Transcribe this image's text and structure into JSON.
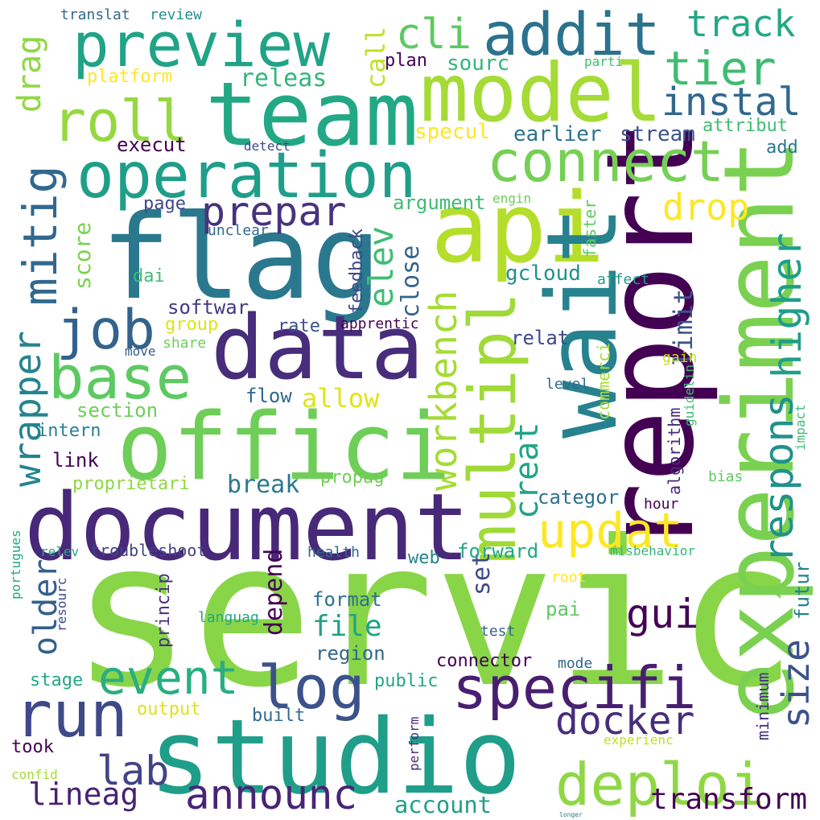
{
  "palette": {
    "dark_purple": "#440154",
    "indigo": "#482878",
    "violet_blue": "#3e4989",
    "steel_blue": "#31688e",
    "teal_blue": "#26828e",
    "teal": "#1f9e89",
    "green_teal": "#35b779",
    "green": "#6ece58",
    "lime": "#b5de2b",
    "yellow": "#fde725"
  },
  "words": [
    {
      "text": "servic",
      "color": "#89d548"
    },
    {
      "text": "studio",
      "color": "#1f9e89"
    },
    {
      "text": "document",
      "color": "#482878"
    },
    {
      "text": "flag",
      "color": "#2a788e"
    },
    {
      "text": "team",
      "color": "#22a884"
    },
    {
      "text": "data",
      "color": "#472d7b"
    },
    {
      "text": "model",
      "color": "#a5db36"
    },
    {
      "text": "experiment",
      "color": "#7ad151"
    },
    {
      "text": "report",
      "color": "#440154"
    },
    {
      "text": "offici",
      "color": "#6ece58"
    },
    {
      "text": "api",
      "color": "#b5de2b"
    },
    {
      "text": "operation",
      "color": "#1f9e89"
    },
    {
      "text": "wait",
      "color": "#26828e"
    },
    {
      "text": "preview",
      "color": "#20a386"
    },
    {
      "text": "addit",
      "color": "#2c728e"
    },
    {
      "text": "run",
      "color": "#3e4989"
    },
    {
      "text": "multipl",
      "color": "#a0da39"
    },
    {
      "text": "connect",
      "color": "#75d054"
    },
    {
      "text": "base",
      "color": "#5ec962"
    },
    {
      "text": "specifi",
      "color": "#481f70"
    },
    {
      "text": "deploi",
      "color": "#8fd744"
    },
    {
      "text": "roll",
      "color": "#95d840"
    },
    {
      "text": "log",
      "color": "#3b528b"
    },
    {
      "text": "job",
      "color": "#33638d"
    },
    {
      "text": "event",
      "color": "#28ae80"
    },
    {
      "text": "respons",
      "color": "#21918c"
    },
    {
      "text": "higher",
      "color": "#1f9e89"
    },
    {
      "text": "mitig",
      "color": "#31688e"
    },
    {
      "text": "announc",
      "color": "#482475"
    },
    {
      "text": "tier",
      "color": "#3fbc73"
    },
    {
      "text": "updat",
      "color": "#fde725"
    },
    {
      "text": "account",
      "color": "#1f9e89"
    },
    {
      "text": "workbench",
      "color": "#a5db36"
    },
    {
      "text": "size",
      "color": "#3b528b"
    },
    {
      "text": "cli",
      "color": "#5ec962"
    },
    {
      "text": "prepar",
      "color": "#46337e"
    },
    {
      "text": "lab",
      "color": "#414487"
    },
    {
      "text": "docker",
      "color": "#472d7b"
    },
    {
      "text": "track",
      "color": "#22a884"
    },
    {
      "text": "instal",
      "color": "#31688e"
    },
    {
      "text": "gui",
      "color": "#440154"
    },
    {
      "text": "drop",
      "color": "#fde725"
    },
    {
      "text": "wrapper",
      "color": "#25848e"
    },
    {
      "text": "drag",
      "color": "#8fd744"
    },
    {
      "text": "creat",
      "color": "#20a486"
    },
    {
      "text": "older",
      "color": "#355f8d"
    },
    {
      "text": "elev",
      "color": "#3fbc73"
    },
    {
      "text": "transform",
      "color": "#440154"
    },
    {
      "text": "limit",
      "color": "#3b528b"
    },
    {
      "text": "lineag",
      "color": "#482173"
    },
    {
      "text": "depend",
      "color": "#440154"
    },
    {
      "text": "file",
      "color": "#20a386"
    },
    {
      "text": "close",
      "color": "#33638d"
    },
    {
      "text": "releas",
      "color": "#32b67a"
    },
    {
      "text": "score",
      "color": "#7ad151"
    },
    {
      "text": "break",
      "color": "#2a788e"
    },
    {
      "text": "allow",
      "color": "#dfe318"
    },
    {
      "text": "set",
      "color": "#3e4a89"
    },
    {
      "text": "call",
      "color": "#c2df23"
    },
    {
      "text": "sourc",
      "color": "#32b67a"
    },
    {
      "text": "futur",
      "color": "#26828e"
    },
    {
      "text": "minimum",
      "color": "#46337e"
    },
    {
      "text": "plan",
      "color": "#440154"
    },
    {
      "text": "platform",
      "color": "#fde725"
    },
    {
      "text": "specul",
      "color": "#fde725"
    },
    {
      "text": "earlier",
      "color": "#2c728e"
    },
    {
      "text": "stream",
      "color": "#3b528b"
    },
    {
      "text": "attribut",
      "color": "#3fbc73"
    },
    {
      "text": "add",
      "color": "#2a788e"
    },
    {
      "text": "execut",
      "color": "#440154"
    },
    {
      "text": "argument",
      "color": "#3fbc73"
    },
    {
      "text": "engin",
      "color": "#6ece58"
    },
    {
      "text": "gcloud",
      "color": "#21918c"
    },
    {
      "text": "feedback",
      "color": "#3e4a89"
    },
    {
      "text": "page",
      "color": "#3e4989"
    },
    {
      "text": "unclear",
      "color": "#31688e"
    },
    {
      "text": "faster",
      "color": "#5ec962"
    },
    {
      "text": "affect",
      "color": "#1f9e89"
    },
    {
      "text": "softwar",
      "color": "#443983"
    },
    {
      "text": "dai",
      "color": "#3fbc73"
    },
    {
      "text": "group",
      "color": "#dfe318"
    },
    {
      "text": "rate",
      "color": "#3b528b"
    },
    {
      "text": "apprentic",
      "color": "#440154"
    },
    {
      "text": "share",
      "color": "#6ece58"
    },
    {
      "text": "move",
      "color": "#355f8d"
    },
    {
      "text": "relat",
      "color": "#3e4989"
    },
    {
      "text": "commerci",
      "color": "#a5db36"
    },
    {
      "text": "gain",
      "color": "#c2df23"
    },
    {
      "text": "level",
      "color": "#31688e"
    },
    {
      "text": "guidelin",
      "color": "#3fbc73"
    },
    {
      "text": "algorithm",
      "color": "#482878"
    },
    {
      "text": "flow",
      "color": "#31688e"
    },
    {
      "text": "section",
      "color": "#6ece58"
    },
    {
      "text": "intern",
      "color": "#26828e"
    },
    {
      "text": "link",
      "color": "#440154"
    },
    {
      "text": "proprietari",
      "color": "#8fd744"
    },
    {
      "text": "propag",
      "color": "#6ece58"
    },
    {
      "text": "categor",
      "color": "#2c728e"
    },
    {
      "text": "bias",
      "color": "#5ec962"
    },
    {
      "text": "impact",
      "color": "#3fbc73"
    },
    {
      "text": "hour",
      "color": "#440154"
    },
    {
      "text": "web",
      "color": "#25848e"
    },
    {
      "text": "forward",
      "color": "#22a884"
    },
    {
      "text": "princip",
      "color": "#46337e"
    },
    {
      "text": "troubleshoot",
      "color": "#414487"
    },
    {
      "text": "relev",
      "color": "#22a884"
    },
    {
      "text": "health",
      "color": "#31688e"
    },
    {
      "text": "misbehavior",
      "color": "#35b779"
    },
    {
      "text": "portugues",
      "color": "#22a884"
    },
    {
      "text": "resourc",
      "color": "#3e4a89"
    },
    {
      "text": "format",
      "color": "#2c728e"
    },
    {
      "text": "pai",
      "color": "#5ec962"
    },
    {
      "text": "root",
      "color": "#fde725"
    },
    {
      "text": "languag",
      "color": "#22a884"
    },
    {
      "text": "test",
      "color": "#33638d"
    },
    {
      "text": "region",
      "color": "#31688e"
    },
    {
      "text": "connector",
      "color": "#440154"
    },
    {
      "text": "mode",
      "color": "#31688e"
    },
    {
      "text": "stage",
      "color": "#22a884"
    },
    {
      "text": "public",
      "color": "#22a884"
    },
    {
      "text": "output",
      "color": "#dfe318"
    },
    {
      "text": "built",
      "color": "#31688e"
    },
    {
      "text": "perform",
      "color": "#472d7b"
    },
    {
      "text": "experienc",
      "color": "#c2df23"
    },
    {
      "text": "took",
      "color": "#440154"
    },
    {
      "text": "confid",
      "color": "#a5db36"
    },
    {
      "text": "longer",
      "color": "#2a788e"
    },
    {
      "text": "translat",
      "color": "#31688e"
    },
    {
      "text": "review",
      "color": "#21918c"
    },
    {
      "text": "detect",
      "color": "#3e4989"
    },
    {
      "text": "parti",
      "color": "#3fbc73"
    }
  ]
}
